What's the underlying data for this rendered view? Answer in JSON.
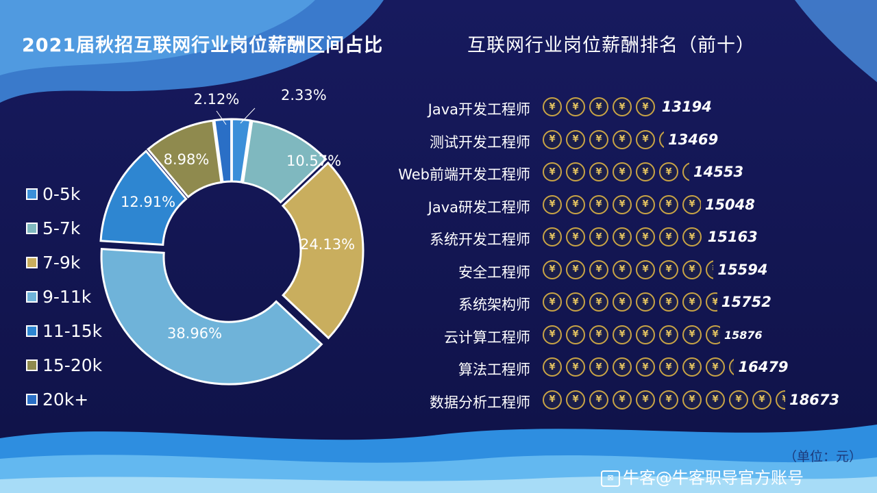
{
  "left_title": "2021届秋招互联网行业岗位薪酬区间占比",
  "right_title": "互联网行业岗位薪酬排名（前十）",
  "unit_note": "（单位：元）",
  "watermark": "牛客@牛客职导官方账号",
  "watermark_icon": "nowcoder-logo-icon",
  "coin_symbol": "¥",
  "colors": {
    "background": "#15185a",
    "coin_gold": "#c9a446"
  },
  "chart_data": [
    {
      "type": "pie",
      "donut": true,
      "title": "2021届秋招互联网行业岗位薪酬区间占比",
      "legend_position": "left",
      "slices": [
        {
          "label": "0-5k",
          "value": 2.33,
          "display": "2.33%",
          "color": "#3b8fd9"
        },
        {
          "label": "5-7k",
          "value": 10.57,
          "display": "10.57%",
          "color": "#7fb8bf"
        },
        {
          "label": "7-9k",
          "value": 24.13,
          "display": "24.13%",
          "color": "#c9ae5e"
        },
        {
          "label": "9-11k",
          "value": 38.96,
          "display": "38.96%",
          "color": "#6fb3d9"
        },
        {
          "label": "11-15k",
          "value": 12.91,
          "display": "12.91%",
          "color": "#2e86d1"
        },
        {
          "label": "15-20k",
          "value": 8.98,
          "display": "8.98%",
          "color": "#8f8a4e"
        },
        {
          "label": "20k+",
          "value": 2.12,
          "display": "2.12%",
          "color": "#2a6fc6"
        }
      ]
    },
    {
      "type": "bar",
      "style": "pictograph",
      "title": "互联网行业岗位薪酬排名（前十）",
      "categories": [
        "Java开发工程师",
        "测试开发工程师",
        "Web前端开发工程师",
        "Java研发工程师",
        "系统开发工程师",
        "安全工程师",
        "系统架构师",
        "云计算工程师",
        "算法工程师",
        "数据分析工程师"
      ],
      "values": [
        13194,
        13469,
        14553,
        15048,
        15163,
        15594,
        15752,
        15876,
        16479,
        18673
      ],
      "value_labels": [
        "13194",
        "13469",
        "14553",
        "15048",
        "15163",
        "15594",
        "15752",
        "15876",
        "16479",
        "18673"
      ]
    }
  ]
}
